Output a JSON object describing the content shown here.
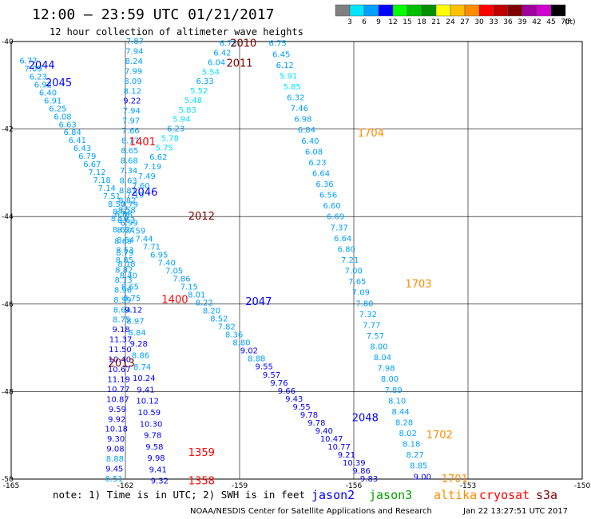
{
  "header": {
    "title": "12:00 – 23:59 UTC 01/21/2017",
    "subtitle": "12 hour collection of altimeter wave heights"
  },
  "legend": {
    "unit": "(ft)",
    "swatches": [
      {
        "label": "3",
        "color": "#7f7f7f"
      },
      {
        "label": "6",
        "color": "#00e5ff"
      },
      {
        "label": "9",
        "color": "#00a0ff"
      },
      {
        "label": "12",
        "color": "#0000ff"
      },
      {
        "label": "15",
        "color": "#00ff00"
      },
      {
        "label": "18",
        "color": "#00c000"
      },
      {
        "label": "21",
        "color": "#009000"
      },
      {
        "label": "24",
        "color": "#ffff00"
      },
      {
        "label": "27",
        "color": "#ffc000"
      },
      {
        "label": "30",
        "color": "#ff8c00"
      },
      {
        "label": "33",
        "color": "#ff0000"
      },
      {
        "label": "36",
        "color": "#c00000"
      },
      {
        "label": "39",
        "color": "#800000"
      },
      {
        "label": "42",
        "color": "#a000a0"
      },
      {
        "label": "45",
        "color": "#d000d0"
      },
      {
        "label": "70",
        "color": "#000000"
      }
    ]
  },
  "footer": {
    "note": "note: 1) Time is in UTC; 2) SWH is in feet",
    "satellites": [
      {
        "name": "jason2",
        "color": "#0000ff"
      },
      {
        "name": "jason3",
        "color": "#00a000"
      },
      {
        "name": "altika",
        "color": "#ff8c00"
      },
      {
        "name": "cryosat",
        "color": "#ff0000"
      },
      {
        "name": "s3a",
        "color": "#800000"
      }
    ],
    "credit": "NOAA/NESDIS Center for Satellite Applications and Research",
    "timestamp": "Jan 22 13:27:51 UTC 2017"
  },
  "chart_data": {
    "type": "scatter",
    "xlabel": "",
    "ylabel": "",
    "xlim": [
      -165,
      -150
    ],
    "ylim": [
      -50,
      -40
    ],
    "x_ticks": [
      "-165",
      "-162",
      "-159",
      "-156",
      "-153",
      "-150"
    ],
    "y_ticks": [
      "-40",
      "-42",
      "-44",
      "-46",
      "-48",
      "-50"
    ],
    "track_labels": [
      {
        "text": "2044",
        "lon": -164.2,
        "lat": -40.55,
        "color": "#0000ff"
      },
      {
        "text": "2045",
        "lon": -163.75,
        "lat": -40.95,
        "color": "#0000ff"
      },
      {
        "text": "2046",
        "lon": -161.5,
        "lat": -43.45,
        "color": "#0000ff"
      },
      {
        "text": "2047",
        "lon": -158.5,
        "lat": -45.95,
        "color": "#0000ff"
      },
      {
        "text": "2048",
        "lon": -155.7,
        "lat": -48.6,
        "color": "#0000ff"
      },
      {
        "text": "2010",
        "lon": -158.9,
        "lat": -40.05,
        "color": "#800000"
      },
      {
        "text": "2011",
        "lon": -159.0,
        "lat": -40.5,
        "color": "#800000"
      },
      {
        "text": "2012",
        "lon": -160.0,
        "lat": -44.0,
        "color": "#800000"
      },
      {
        "text": "2013",
        "lon": -162.1,
        "lat": -47.35,
        "color": "#800000"
      },
      {
        "text": "1401",
        "lon": -161.55,
        "lat": -42.3,
        "color": "#ff0000"
      },
      {
        "text": "1400",
        "lon": -160.7,
        "lat": -45.9,
        "color": "#ff0000"
      },
      {
        "text": "1359",
        "lon": -160.0,
        "lat": -49.4,
        "color": "#ff0000"
      },
      {
        "text": "1358",
        "lon": -160.0,
        "lat": -50.05,
        "color": "#ff0000"
      },
      {
        "text": "1704",
        "lon": -155.55,
        "lat": -42.1,
        "color": "#ff8c00"
      },
      {
        "text": "1703",
        "lon": -154.3,
        "lat": -45.55,
        "color": "#ff8c00"
      },
      {
        "text": "1702",
        "lon": -153.75,
        "lat": -49.0,
        "color": "#ff8c00"
      },
      {
        "text": "1701",
        "lon": -153.35,
        "lat": -50.0,
        "color": "#ff8c00"
      }
    ],
    "series": [
      {
        "name": "2044",
        "lon_start": -164.55,
        "lat_start": -40.45,
        "lon_end": -162.1,
        "lat_end": -43.9,
        "values": [
          6.77,
          7.09,
          6.23,
          6.92,
          6.4,
          6.91,
          6.25,
          6.08,
          6.63,
          6.84,
          6.41,
          6.43,
          6.79,
          6.67,
          7.12,
          7.18,
          7.14,
          7.51,
          8.5,
          8.62
        ]
      },
      {
        "name": "2045",
        "lon_start": -161.75,
        "lat_start": -40.0,
        "lon_end": -162.3,
        "lat_end": -50.0,
        "values": [
          7.87,
          7.94,
          8.24,
          7.99,
          8.09,
          8.12,
          9.22,
          7.94,
          7.97,
          7.66,
          8.17,
          8.65,
          8.68,
          7.34,
          8.63,
          8.81,
          8.82,
          8.58,
          8.63,
          8.54,
          8.64,
          8.53,
          8.85,
          8.82,
          8.13,
          8.96,
          8.99,
          8.64,
          8.75,
          9.18,
          11.37,
          11.5,
          10.4,
          10.67,
          11.19,
          10.77,
          10.87,
          9.59,
          9.92,
          10.18,
          9.3,
          9.08,
          8.88,
          9.45,
          8.51
        ]
      },
      {
        "name": "2046",
        "lon_start": -162.15,
        "lat_start": -44.05,
        "lon_end": -161.1,
        "lat_end": -50.05,
        "values": [
          8.1,
          8.62,
          8.69,
          8.79,
          8.18,
          8.4,
          8.65,
          8.75,
          9.12,
          8.97,
          8.84,
          9.28,
          8.86,
          8.74,
          10.24,
          9.41,
          10.12,
          10.59,
          10.3,
          9.78,
          9.58,
          9.98,
          9.41,
          9.32
        ]
      },
      {
        "name": "2010",
        "lon_start": -159.3,
        "lat_start": -40.05,
        "lon_end": -162.05,
        "lat_end": -43.95,
        "values": [
          6.73,
          6.42,
          6.04,
          5.54,
          6.33,
          5.52,
          5.48,
          5.83,
          5.94,
          6.23,
          5.78,
          5.75,
          6.62,
          7.19,
          7.49,
          7.6,
          7.19,
          7.79,
          6.88
        ]
      },
      {
        "name": "2012",
        "lon_start": -161.9,
        "lat_start": -44.15,
        "lon_end": -155.6,
        "lat_end": -50.0,
        "values": [
          6.99,
          7.59,
          7.44,
          7.71,
          6.95,
          7.4,
          7.05,
          7.86,
          7.15,
          8.01,
          8.22,
          8.2,
          8.52,
          7.82,
          8.36,
          8.8,
          9.02,
          8.88,
          9.55,
          9.57,
          9.76,
          9.66,
          9.43,
          9.55,
          9.78,
          9.78,
          9.4,
          10.47,
          10.77,
          9.21,
          10.39,
          9.86,
          9.83
        ]
      },
      {
        "name": "1704",
        "lon_start": -158.0,
        "lat_start": -40.05,
        "lon_end": -154.2,
        "lat_end": -49.95,
        "values": [
          6.75,
          6.45,
          6.12,
          5.91,
          5.85,
          6.32,
          7.46,
          6.98,
          6.84,
          6.4,
          6.08,
          6.23,
          6.64,
          6.36,
          6.56,
          6.6,
          6.69,
          7.37,
          6.64,
          6.8,
          7.21,
          7.0,
          7.65,
          7.09,
          7.8,
          7.32,
          7.77,
          7.57,
          8.0,
          8.04,
          7.98,
          8.0,
          7.89,
          8.1,
          8.44,
          8.28,
          8.02,
          8.18,
          8.27,
          8.85,
          9.0
        ]
      }
    ]
  }
}
